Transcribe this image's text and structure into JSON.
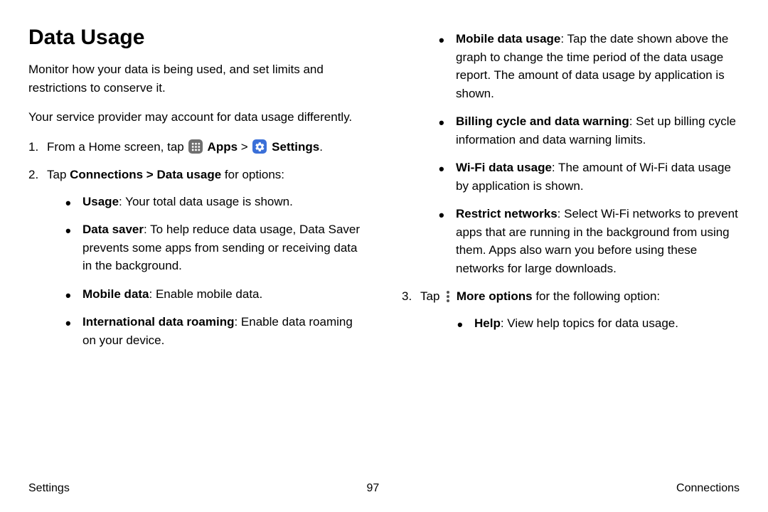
{
  "title": "Data Usage",
  "intro1": "Monitor how your data is being used, and set limits and restrictions to conserve it.",
  "intro2": "Your service provider may account for data usage differently.",
  "step1_a": "From a Home screen, tap ",
  "step1_apps": " Apps ",
  "step1_sep": "> ",
  "step1_settings": " Settings",
  "step1_end": ".",
  "step2_a": "Tap ",
  "step2_b": "Connections > Data usage",
  "step2_c": " for options:",
  "bullets1": [
    {
      "bold": "Usage",
      "rest": ": Your total data usage is shown."
    },
    {
      "bold": "Data saver",
      "rest": ": To help reduce data usage, Data Saver prevents some apps from sending or receiving data in the background."
    },
    {
      "bold": "Mobile data",
      "rest": ": Enable mobile data."
    },
    {
      "bold": "International data roaming",
      "rest": ": Enable data roaming on your device."
    }
  ],
  "bullets2": [
    {
      "bold": "Mobile data usage",
      "rest": ": Tap the date shown above the graph to change the time period of the data usage report. The amount of data usage by application is shown."
    },
    {
      "bold": "Billing cycle and data warning",
      "rest": ": Set up billing cycle information and data warning limits."
    },
    {
      "bold": "Wi-Fi data usage",
      "rest": ": The amount of Wi-Fi data usage by application is shown."
    },
    {
      "bold": "Restrict networks",
      "rest": ": Select Wi-Fi networks to prevent apps that are running in the background from using them. Apps also warn you before using these networks for large downloads."
    }
  ],
  "step3_a": "Tap ",
  "step3_b": " More options",
  "step3_c": " for the following option:",
  "bullets3": [
    {
      "bold": "Help",
      "rest": ": View help topics for data usage."
    }
  ],
  "footer_left": "Settings",
  "footer_center": "97",
  "footer_right": "Connections"
}
